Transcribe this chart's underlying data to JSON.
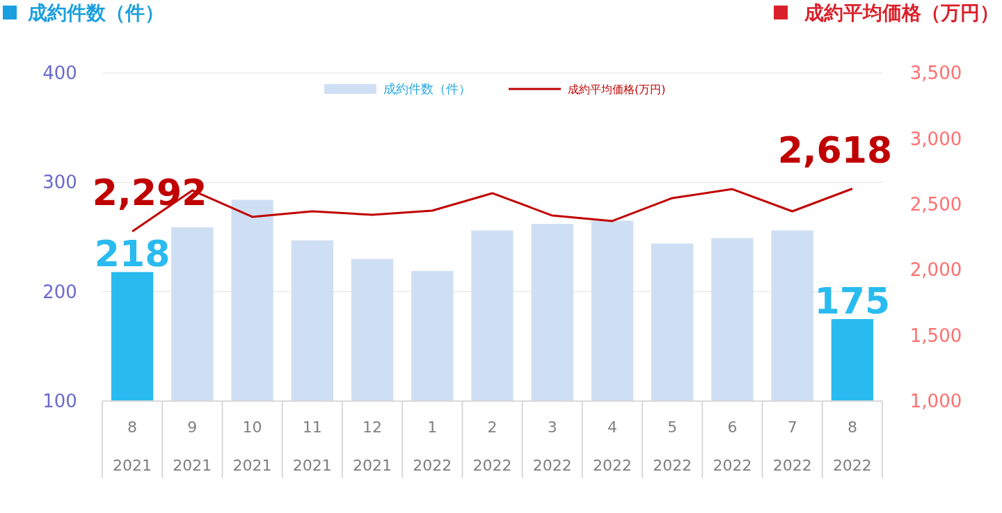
{
  "chart_data": {
    "type": "bar",
    "ylabel": "成約件数（件）",
    "y2label": "成約平均価格（万円）",
    "categories": [
      "8\n2021",
      "9\n2021",
      "10\n2021",
      "11\n2021",
      "12\n2021",
      "1\n2022",
      "2\n2022",
      "3\n2022",
      "4\n2022",
      "5\n2022",
      "6\n2022",
      "7\n2022",
      "8\n2022"
    ],
    "series": [
      {
        "name": "成約件数（件）",
        "color": "#cfdff3",
        "colors": [
          "#29bbef",
          "#cfdff3",
          "#cfdff3",
          "#cfdff3",
          "#cfdff3",
          "#cfdff3",
          "#cfdff3",
          "#cfdff3",
          "#cfdff3",
          "#cfdff3",
          "#cfdff3",
          "#cfdff3",
          "#29bbef"
        ],
        "values": [
          218,
          259,
          284,
          247,
          230,
          219,
          256,
          262,
          265,
          244,
          249,
          256,
          175
        ],
        "value_labels": [
          "218",
          null,
          null,
          null,
          null,
          null,
          null,
          null,
          null,
          null,
          null,
          null,
          "175"
        ]
      },
      {
        "name": "成約平均価格(万円)",
        "type": "line",
        "axis": "y2",
        "color": "#c00000",
        "values": [
          2292,
          2605,
          2404,
          2446,
          2419,
          2451,
          2584,
          2414,
          2372,
          2547,
          2615,
          2446,
          2618
        ],
        "value_labels": [
          "2,292",
          null,
          null,
          null,
          null,
          null,
          null,
          null,
          null,
          null,
          null,
          null,
          "2,618"
        ]
      }
    ],
    "ylim": [
      100,
      400
    ],
    "yticks": [
      100,
      200,
      300,
      400
    ],
    "y2lim": [
      1000,
      3500
    ],
    "y2ticks": [
      {
        "value": 1000,
        "label": "1,000"
      },
      {
        "value": 1500,
        "label": "1,500"
      },
      {
        "value": 2000,
        "label": "2,000"
      },
      {
        "value": 2500,
        "label": "2,500"
      },
      {
        "value": 3000,
        "label": "3,000"
      },
      {
        "value": 3500,
        "label": "3,500"
      }
    ],
    "grid": "y",
    "legend": "top",
    "marker": "none",
    "line_style": "solid"
  }
}
